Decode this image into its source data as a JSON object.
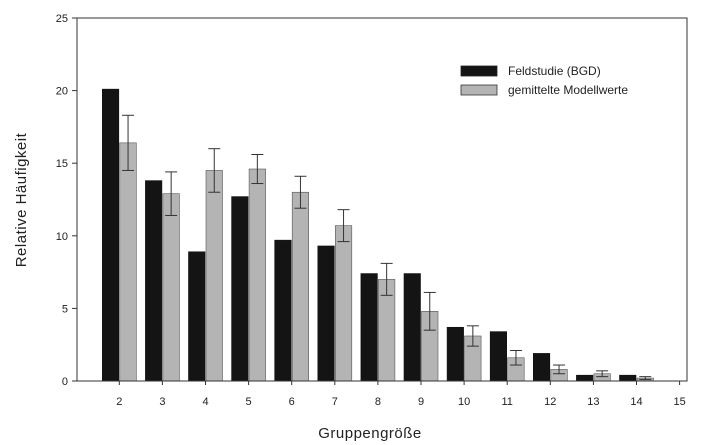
{
  "chart_data": {
    "type": "bar",
    "title": "",
    "xlabel": "Gruppengröße",
    "ylabel": "Relative Häufigkeit",
    "x_ticks": [
      2,
      3,
      4,
      5,
      6,
      7,
      8,
      9,
      10,
      11,
      12,
      13,
      14,
      15
    ],
    "categories": [
      2,
      3,
      4,
      5,
      6,
      7,
      8,
      9,
      10,
      11,
      12,
      13,
      14
    ],
    "ylim": [
      0,
      25
    ],
    "y_ticks": [
      0,
      5,
      10,
      15,
      20,
      25
    ],
    "grid": false,
    "legend_position": "top-right",
    "series": [
      {
        "name": "Feldstudie (BGD)",
        "color": "#141414",
        "values": [
          20.1,
          13.8,
          8.9,
          12.7,
          9.7,
          9.3,
          7.4,
          7.4,
          3.7,
          3.4,
          1.9,
          0.4,
          0.4
        ],
        "errors": null
      },
      {
        "name": "gemittelte Modellwerte",
        "color": "#b4b4b4",
        "values": [
          16.4,
          12.9,
          14.5,
          14.6,
          13.0,
          10.7,
          7.0,
          4.8,
          3.1,
          1.6,
          0.8,
          0.5,
          0.2
        ],
        "errors": [
          1.9,
          1.5,
          1.5,
          1.0,
          1.1,
          1.1,
          1.1,
          1.3,
          0.7,
          0.5,
          0.3,
          0.2,
          0.1
        ]
      }
    ]
  }
}
